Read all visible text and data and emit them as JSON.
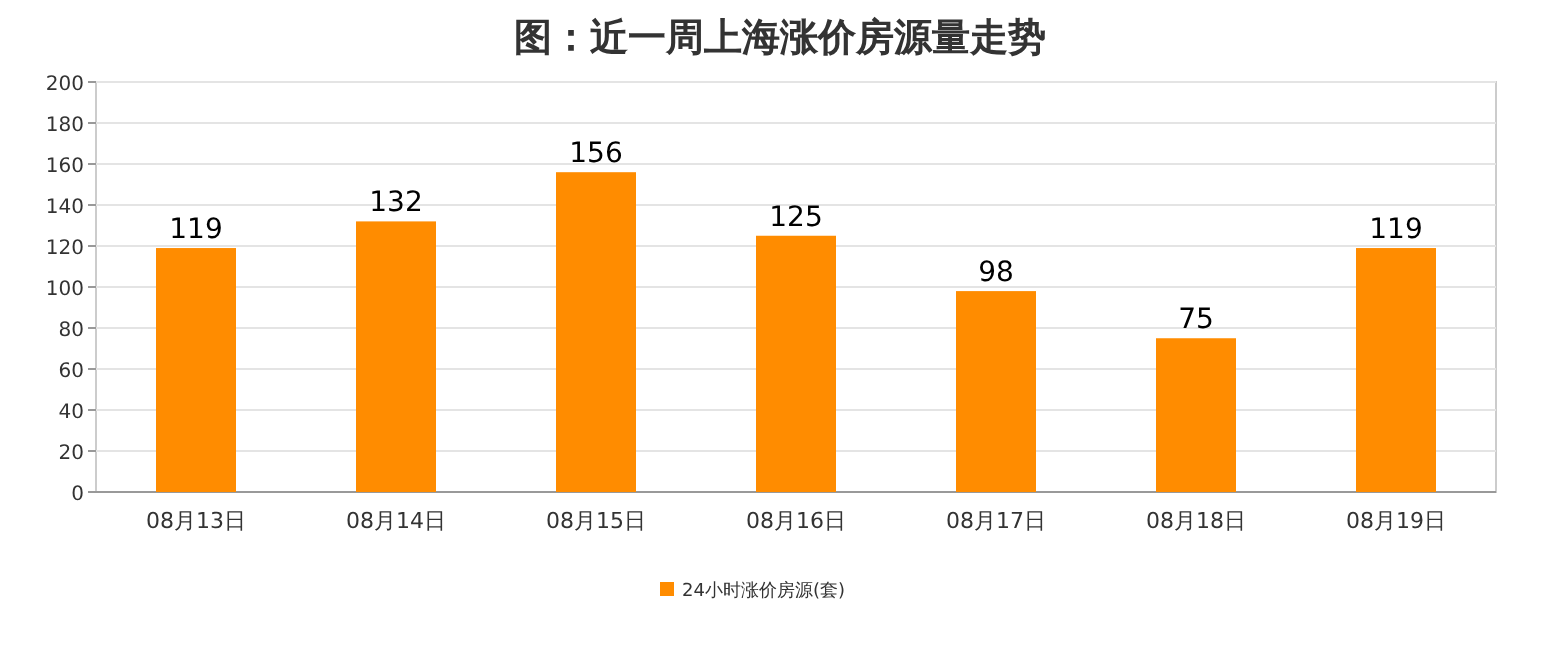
{
  "chart_data": {
    "type": "bar",
    "title": "图：近一周上海涨价房源量走势",
    "categories": [
      "08月13日",
      "08月14日",
      "08月15日",
      "08月16日",
      "08月17日",
      "08月18日",
      "08月19日"
    ],
    "series": [
      {
        "name": "24小时涨价房源(套)",
        "color": "#ff8c00",
        "values": [
          119,
          132,
          156,
          125,
          98,
          75,
          119
        ]
      }
    ],
    "ylim": [
      0,
      200
    ],
    "yticks": [
      0,
      20,
      40,
      60,
      80,
      100,
      120,
      140,
      160,
      180,
      200
    ],
    "grid": "y",
    "legend": "bottom",
    "data_labels": true
  }
}
